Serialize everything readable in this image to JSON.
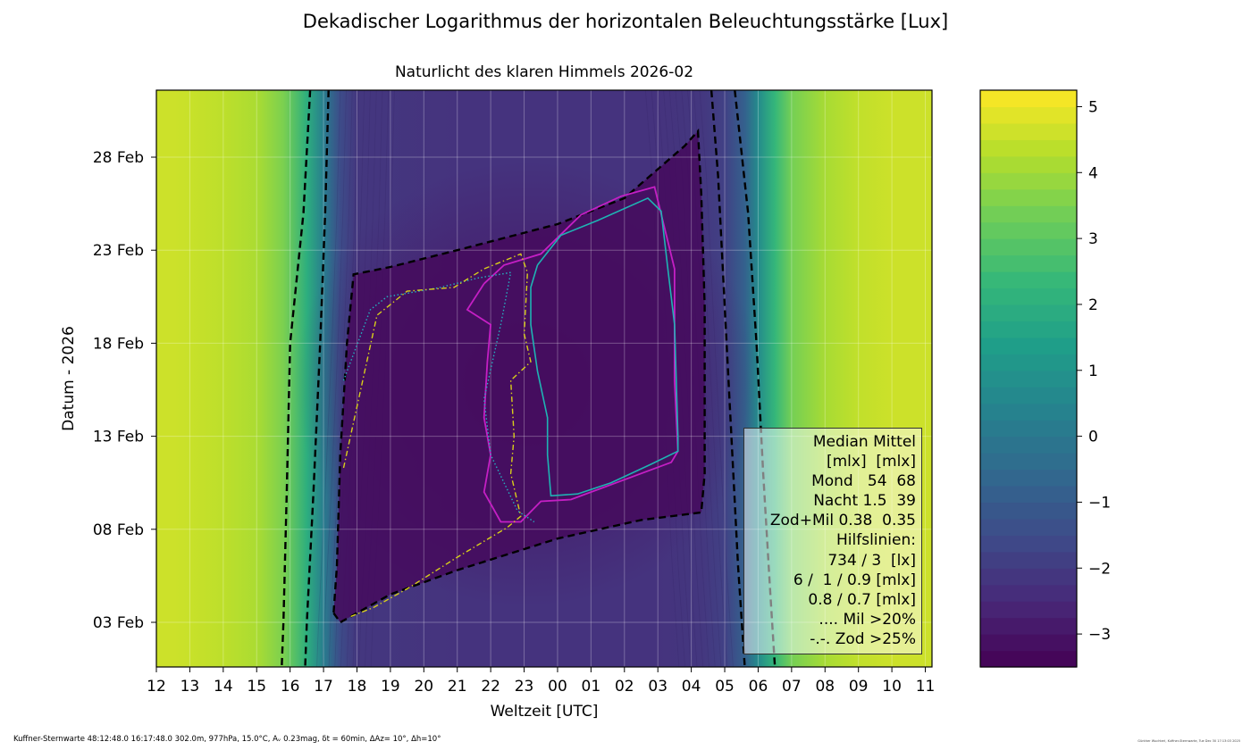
{
  "header": {
    "title": "Dekadischer Logarithmus der horizontalen Beleuchtungsstärke [Lux]",
    "subtitle": "Naturlicht des klaren Himmels 2026-02"
  },
  "footer": {
    "left": "Kuffner-Sternwarte 48:12:48.0 16:17:48.0 302.0m,  977hPa, 15.0°C, Aᵥ 0.23mag, δt = 60min, ΔAz= 10°, Δh=10°",
    "right": "Günther Wuchterl, Kuffner-Sternwarte, Tue Dec 30 17:13:03 2025"
  },
  "legend": {
    "lines": [
      "Median Mittel",
      "[mlx]  [mlx]",
      "Mond   54  68",
      "Nacht 1.5  39",
      "Zod+Mil 0.38  0.35",
      "Hilfslinien:",
      "734 / 3  [lx]",
      "6 /  1 / 0.9 [mlx]",
      "0.8 / 0.7 [mlx]",
      ".... Mil >20%",
      "-.-. Zod >25%"
    ]
  },
  "chart_data": {
    "type": "heatmap",
    "title": "Dekadischer Logarithmus der horizontalen Beleuchtungsstärke [Lux]",
    "subtitle": "Naturlicht des klaren Himmels 2026-02",
    "xlabel": "Weltzeit [UTC]",
    "ylabel": "Datum - 2026",
    "x_tick_labels": [
      "12",
      "13",
      "14",
      "15",
      "16",
      "17",
      "18",
      "19",
      "20",
      "21",
      "22",
      "23",
      "00",
      "01",
      "02",
      "03",
      "04",
      "05",
      "06",
      "07",
      "08",
      "09",
      "10",
      "11"
    ],
    "y_tick_labels": [
      "03 Feb",
      "08 Feb",
      "13 Feb",
      "18 Feb",
      "23 Feb",
      "28 Feb"
    ],
    "y_tick_days": [
      3,
      8,
      13,
      18,
      23,
      28
    ],
    "ylim_days": [
      0.6,
      31.6
    ],
    "x_range_hours": [
      12,
      35.2
    ],
    "colorbar": {
      "ticks": [
        -3,
        -2,
        -1,
        0,
        1,
        2,
        3,
        4,
        5
      ],
      "tick_labels": [
        "−3",
        "−2",
        "−1",
        "0",
        "1",
        "2",
        "3",
        "4",
        "5"
      ],
      "range": [
        -3.5,
        5.25
      ],
      "colormap": "viridis"
    },
    "color_profile": {
      "hours": [
        12,
        12.5,
        13,
        14,
        15,
        15.8,
        16.5,
        17,
        17.5,
        18,
        21,
        24,
        27,
        28.3,
        29,
        29.6,
        30,
        30.5,
        31,
        32,
        33,
        34,
        35.2
      ],
      "log_lux": [
        4.6,
        4.6,
        4.55,
        4.4,
        4.15,
        3.5,
        2.0,
        0.2,
        -1.5,
        -2.1,
        -2.2,
        -2.2,
        -2.2,
        -2.1,
        -1.8,
        -0.8,
        0.7,
        2.3,
        3.4,
        4.1,
        4.45,
        4.6,
        4.6
      ],
      "dark_core_value": -3.25
    },
    "contours": {
      "sunset_outer": [
        [
          16.6,
          31.6
        ],
        [
          16.4,
          25
        ],
        [
          16.0,
          18
        ],
        [
          15.9,
          10
        ],
        [
          15.8,
          3
        ],
        [
          15.75,
          0.6
        ]
      ],
      "sunset_inner": [
        [
          17.15,
          31.6
        ],
        [
          17.05,
          25
        ],
        [
          16.9,
          18
        ],
        [
          16.7,
          10
        ],
        [
          16.5,
          3
        ],
        [
          16.45,
          0.6
        ]
      ],
      "sunrise_inner": [
        [
          28.6,
          31.6
        ],
        [
          28.8,
          27
        ],
        [
          29.0,
          20
        ],
        [
          29.2,
          13
        ],
        [
          29.4,
          6
        ],
        [
          29.6,
          0.6
        ]
      ],
      "sunrise_outer": [
        [
          29.3,
          31.6
        ],
        [
          29.7,
          25
        ],
        [
          29.95,
          18
        ],
        [
          30.15,
          11
        ],
        [
          30.35,
          5
        ],
        [
          30.5,
          0.6
        ]
      ],
      "night_boundary": [
        [
          17.3,
          3.5
        ],
        [
          17.5,
          3.0
        ],
        [
          19,
          4.5
        ],
        [
          21,
          5.8
        ],
        [
          24,
          7.5
        ],
        [
          26.5,
          8.5
        ],
        [
          28.3,
          8.9
        ],
        [
          28.4,
          11
        ],
        [
          28.4,
          20
        ],
        [
          28.3,
          26
        ],
        [
          28.2,
          29.4
        ],
        [
          27.8,
          28.6
        ],
        [
          26,
          25.8
        ],
        [
          24,
          24.4
        ],
        [
          21,
          23.0
        ],
        [
          19,
          22.1
        ],
        [
          17.9,
          21.7
        ],
        [
          17.7,
          18
        ],
        [
          17.5,
          12
        ],
        [
          17.4,
          6
        ],
        [
          17.3,
          3.5
        ]
      ],
      "moon_night_cyan": [
        [
          23.4,
          22.2
        ],
        [
          24.1,
          23.8
        ],
        [
          25.2,
          24.6
        ],
        [
          26.7,
          25.8
        ],
        [
          27.1,
          25.1
        ],
        [
          27.3,
          22
        ],
        [
          27.5,
          19
        ],
        [
          27.6,
          13
        ],
        [
          27.6,
          12.2
        ],
        [
          26.8,
          11.5
        ],
        [
          25.6,
          10.5
        ],
        [
          24.6,
          9.9
        ],
        [
          23.8,
          9.8
        ],
        [
          23.7,
          12
        ],
        [
          23.7,
          14
        ],
        [
          23.4,
          16.5
        ],
        [
          23.2,
          19
        ],
        [
          23.2,
          21
        ],
        [
          23.4,
          22.2
        ]
      ],
      "moon_magenta": [
        [
          21.8,
          21.2
        ],
        [
          22.4,
          22.2
        ],
        [
          23.5,
          22.8
        ],
        [
          24.7,
          24.9
        ],
        [
          25.9,
          25.9
        ],
        [
          26.9,
          26.4
        ],
        [
          27.5,
          22
        ],
        [
          27.5,
          16
        ],
        [
          27.6,
          12.2
        ],
        [
          27.4,
          11.6
        ],
        [
          25.6,
          10.4
        ],
        [
          24.4,
          9.6
        ],
        [
          23.5,
          9.5
        ],
        [
          22.9,
          8.4
        ],
        [
          22.3,
          8.4
        ],
        [
          21.8,
          10
        ],
        [
          22.0,
          12
        ],
        [
          21.8,
          14
        ],
        [
          21.9,
          17
        ],
        [
          22.0,
          19
        ],
        [
          21.3,
          19.8
        ],
        [
          21.8,
          21.2
        ]
      ],
      "milky_way_dotted": [
        [
          17.6,
          16.0
        ],
        [
          18.4,
          19.8
        ],
        [
          18.9,
          20.5
        ],
        [
          20.5,
          21
        ],
        [
          21.6,
          21.5
        ],
        [
          22.6,
          21.8
        ],
        [
          22.3,
          19.0
        ],
        [
          21.8,
          15.0
        ],
        [
          22.0,
          12.0
        ],
        [
          22.8,
          9.0
        ],
        [
          23.3,
          8.4
        ]
      ],
      "zodiacal_dashdot": [
        [
          17.6,
          11.3
        ],
        [
          18.6,
          19.5
        ],
        [
          19.5,
          20.8
        ],
        [
          20.9,
          21
        ],
        [
          21.8,
          22.0
        ],
        [
          22.9,
          22.8
        ],
        [
          23.1,
          21.8
        ],
        [
          23.0,
          18.5
        ],
        [
          23.2,
          17.0
        ],
        [
          22.6,
          16.0
        ],
        [
          22.7,
          13.0
        ],
        [
          22.6,
          11.0
        ],
        [
          22.9,
          8.7
        ],
        [
          22.5,
          8.1
        ],
        [
          21.0,
          6.5
        ],
        [
          19.5,
          4.8
        ],
        [
          18.5,
          3.8
        ],
        [
          17.8,
          3.3
        ]
      ],
      "log_lux_levels": [
        -3.25,
        -3,
        -2.75,
        -2.5,
        -2.25,
        -2,
        -1.75,
        -1.5,
        -1.25,
        -1,
        -0.75,
        -0.5,
        -0.25,
        0,
        0.25,
        0.5,
        0.75,
        1,
        1.25,
        1.5,
        1.75,
        2,
        2.25,
        2.5,
        2.75,
        3,
        3.25,
        3.5,
        3.75,
        4,
        4.25,
        4.5,
        4.75,
        5
      ]
    },
    "grid": true,
    "legend_placement": "lower-right"
  }
}
